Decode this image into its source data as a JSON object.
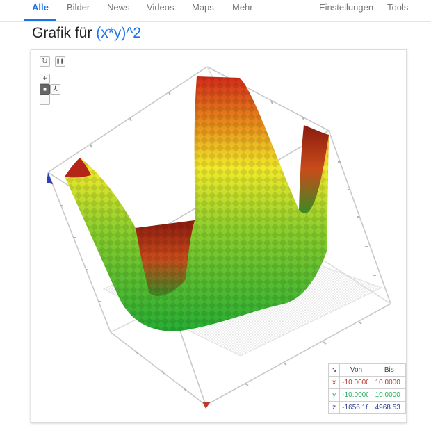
{
  "tabs": [
    {
      "label": "Alle",
      "active": true
    },
    {
      "label": "Bilder"
    },
    {
      "label": "News"
    },
    {
      "label": "Videos"
    },
    {
      "label": "Maps"
    },
    {
      "label": "Mehr"
    }
  ],
  "right_tabs": [
    {
      "label": "Einstellungen"
    },
    {
      "label": "Tools"
    }
  ],
  "title": {
    "prefix": "Grafik für",
    "query": "(x*y)^2"
  },
  "controls": {
    "reset": "↻",
    "pause": "❚❚",
    "zoom_in": "+",
    "zoom_out": "−",
    "camera": "■",
    "axes": "⅄"
  },
  "colors": {
    "accent": "#1a73e8",
    "x": "#c0392b",
    "y": "#27ae60",
    "z": "#2a3a8f"
  },
  "ranges": {
    "corner": "↘",
    "header_from": "Von",
    "header_to": "Bis",
    "rows": [
      {
        "axis": "x",
        "from": "-10.0000",
        "to": "10.0000"
      },
      {
        "axis": "y",
        "from": "-10.0000",
        "to": "10.0000"
      },
      {
        "axis": "z",
        "from": "-1656.18",
        "to": "4968.53"
      }
    ]
  }
}
